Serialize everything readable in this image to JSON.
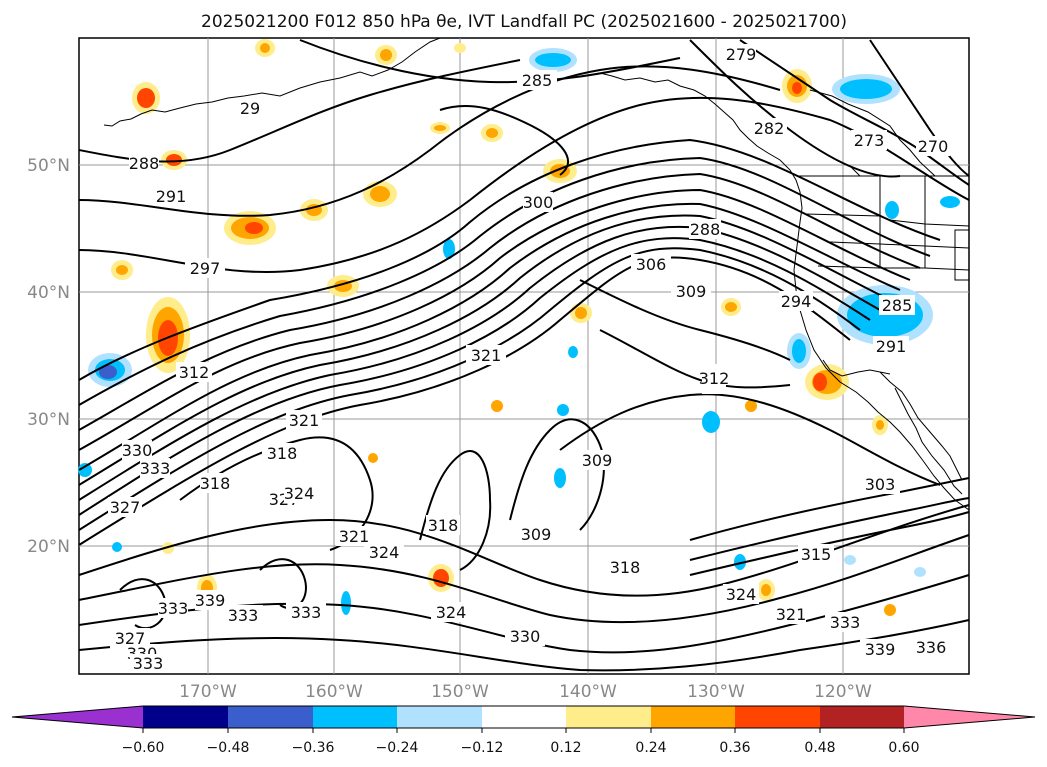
{
  "title": "2025021200 F012 850 hPa θe, IVT Landfall PC (2025021600 - 2025021700)",
  "map": {
    "lat_ticks": [
      "50°N",
      "40°N",
      "30°N",
      "20°N"
    ],
    "lon_ticks": [
      "170°W",
      "160°W",
      "150°W",
      "140°W",
      "130°W",
      "120°W"
    ],
    "contour_labels": [
      "285",
      "279",
      "282",
      "273",
      "270",
      "288",
      "291",
      "29",
      "297",
      "300",
      "288",
      "306",
      "309",
      "294",
      "285",
      "291",
      "312",
      "321",
      "312",
      "321",
      "318",
      "330",
      "333",
      "327",
      "318",
      "327",
      "324",
      "321",
      "324",
      "318",
      "309",
      "309",
      "303",
      "315",
      "318",
      "324",
      "321",
      "333",
      "336",
      "339",
      "333",
      "330",
      "333",
      "327",
      "330",
      "333",
      "324",
      "333",
      "339"
    ]
  },
  "colorbar": {
    "tick_labels": [
      "−0.60",
      "−0.48",
      "−0.36",
      "−0.24",
      "−0.12",
      "0.12",
      "0.24",
      "0.36",
      "0.48",
      "0.60"
    ],
    "colors": [
      "#9b30d0",
      "#00008b",
      "#3a5fcd",
      "#00bfff",
      "#b0e2ff",
      "#ffffff",
      "#ffec8b",
      "#ffa500",
      "#ff4500",
      "#b22222",
      "#ff88aa"
    ]
  }
}
